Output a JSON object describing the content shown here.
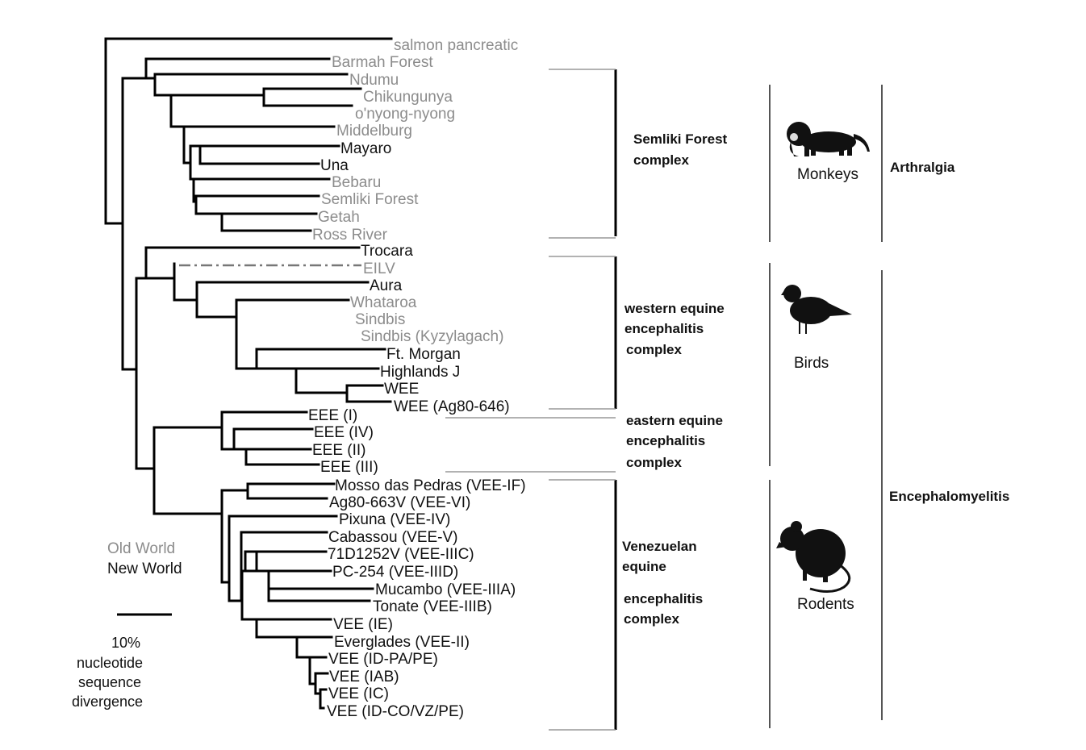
{
  "taxa": {
    "salmon": "salmon pancreatic",
    "barmah": "Barmah Forest",
    "ndumu": "Ndumu",
    "chik": "Chikungunya",
    "onn": "o'nyong-nyong",
    "midd": "Middelburg",
    "mayaro": "Mayaro",
    "una": "Una",
    "bebaru": "Bebaru",
    "semliki": "Semliki Forest",
    "getah": "Getah",
    "ross": "Ross River",
    "trocara": "Trocara",
    "eilv": "EILV",
    "aura": "Aura",
    "whataroa": "Whataroa",
    "sindbis": "Sindbis",
    "sindbisk": "Sindbis (Kyzylagach)",
    "ftmorgan": "Ft. Morgan",
    "highlands": "Highlands J",
    "wee": "WEE",
    "weeag": "WEE (Ag80-646)",
    "eee1": "EEE (I)",
    "eee4": "EEE (IV)",
    "eee2": "EEE (II)",
    "eee3": "EEE (III)",
    "mosso": "Mosso das Pedras (VEE-IF)",
    "ag80": "Ag80-663V (VEE-VI)",
    "pixuna": "Pixuna (VEE-IV)",
    "cabassou": "Cabassou (VEE-V)",
    "t71d": "71D1252V (VEE-IIIC)",
    "pc254": "PC-254 (VEE-IIID)",
    "mucambo": "Mucambo (VEE-IIIA)",
    "tonate": "Tonate (VEE-IIIB)",
    "veeie": "VEE (IE)",
    "everglades": "Everglades (VEE-II)",
    "veeidpa": "VEE (ID-PA/PE)",
    "veeiab": "VEE (IAB)",
    "veeic": "VEE (IC)",
    "veeidco": "VEE (ID-CO/VZ/PE)"
  },
  "complexes": {
    "semliki_l1": "Semliki Forest",
    "semliki_l2": "complex",
    "wee_l1": "western equine",
    "wee_l2": "encephalitis",
    "wee_l3": "complex",
    "eee_l1": "eastern equine",
    "eee_l2": "encephalitis",
    "eee_l3": "complex",
    "vee_l1": "Venezuelan",
    "vee_l2": "equine",
    "vee_l3": "encephalitis",
    "vee_l4": "complex"
  },
  "hosts": {
    "monkeys": "Monkeys",
    "birds": "Birds",
    "rodents": "Rodents"
  },
  "diseases": {
    "arthralgia": "Arthralgia",
    "encephalomyelitis": "Encephalomyelitis"
  },
  "legend": {
    "old_world": "Old World",
    "new_world": "New World",
    "scale_l1": "10%",
    "scale_l2": "nucleotide",
    "scale_l3": "sequence",
    "scale_l4": "divergence"
  },
  "colors": {
    "old_world": "#8c8c8c",
    "new_world": "#111111",
    "branch": "#000000"
  }
}
